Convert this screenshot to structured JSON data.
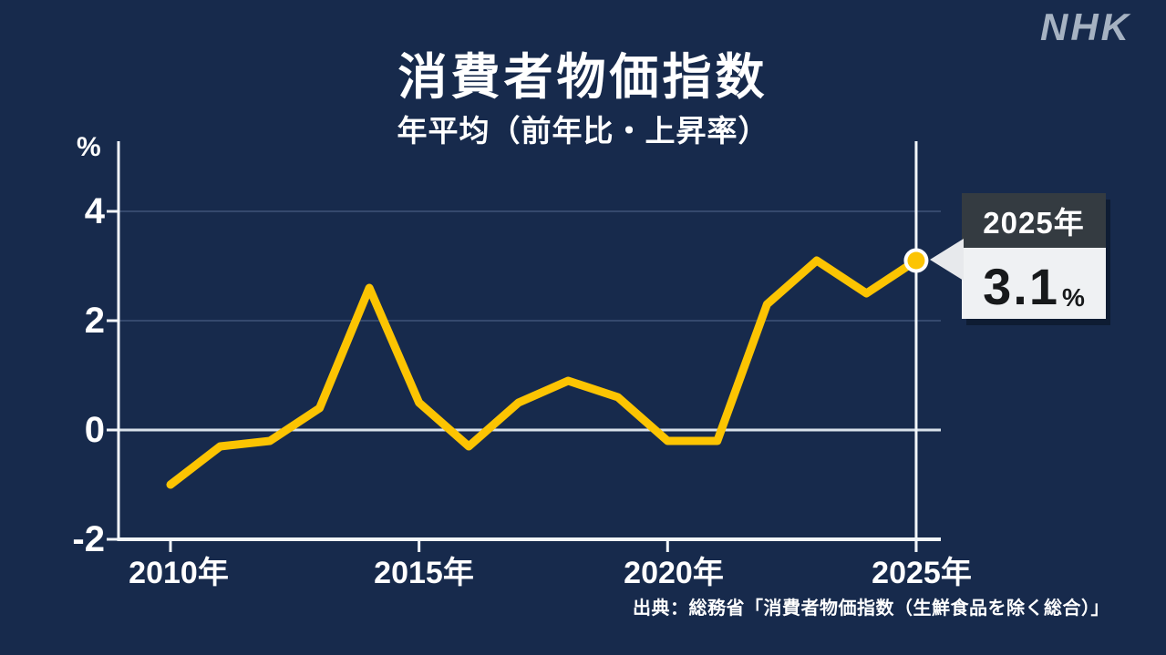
{
  "branding": {
    "logo_text": "NHK"
  },
  "chart_data": {
    "type": "line",
    "title": "消費者物価指数",
    "subtitle": "年平均（前年比・上昇率）",
    "unit": "%",
    "x": [
      2010,
      2011,
      2012,
      2013,
      2014,
      2015,
      2016,
      2017,
      2018,
      2019,
      2020,
      2021,
      2022,
      2023,
      2024,
      2025
    ],
    "series": [
      {
        "name": "消費者物価指数（前年比・上昇率）",
        "values": [
          -1.0,
          -0.3,
          -0.2,
          0.4,
          2.6,
          0.5,
          -0.3,
          0.5,
          0.9,
          0.6,
          -0.2,
          -0.2,
          2.3,
          3.1,
          2.5,
          3.1
        ]
      }
    ],
    "x_ticks": [
      {
        "label": "2010年",
        "year": 2010
      },
      {
        "label": "2015年",
        "year": 2015
      },
      {
        "label": "2020年",
        "year": 2020
      },
      {
        "label": "2025年",
        "year": 2025
      }
    ],
    "y_ticks": [
      {
        "label": "4",
        "value": 4
      },
      {
        "label": "2",
        "value": 2
      },
      {
        "label": "0",
        "value": 0
      },
      {
        "label": "-2",
        "value": -2
      }
    ],
    "ylim": [
      -2,
      4.8
    ],
    "xlim": [
      2009,
      2025.5
    ],
    "grid": "horizontal",
    "legend": "none",
    "highlight": {
      "year": 2025,
      "value": 3.1
    }
  },
  "callout": {
    "year_label": "2025年",
    "value": "3.1",
    "unit": "%"
  },
  "source": {
    "text": "出典：総務省「消費者物価指数（生鮮食品を除く総合）」"
  },
  "colors": {
    "background": "#172a4c",
    "line": "#fcc402",
    "axis": "#f2f6fa",
    "grid_faint": "#35496d",
    "zero_line": "#d8e1ea",
    "dot_fill": "#fcc402",
    "dot_ring": "#ffffff",
    "callout_header_bg": "#343b41",
    "callout_body_bg": "#eff1f3",
    "callout_arrow": "#e7e9ec",
    "logo": "#a6b2c2"
  }
}
